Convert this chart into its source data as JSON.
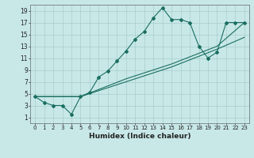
{
  "xlabel": "Humidex (Indice chaleur)",
  "bg_color": "#c8e8e8",
  "grid_color": "#a8cccc",
  "line_color": "#1a6e60",
  "xlim": [
    -0.5,
    23.5
  ],
  "ylim": [
    0.0,
    20.0
  ],
  "xticks": [
    0,
    1,
    2,
    3,
    4,
    5,
    6,
    7,
    8,
    9,
    10,
    11,
    12,
    13,
    14,
    15,
    16,
    17,
    18,
    19,
    20,
    21,
    22,
    23
  ],
  "yticks": [
    1,
    3,
    5,
    7,
    9,
    11,
    13,
    15,
    17,
    19
  ],
  "line1": {
    "x": [
      0,
      1,
      2,
      3,
      4,
      5,
      6,
      7,
      8,
      9,
      10,
      11,
      12,
      13,
      14,
      15,
      16,
      17,
      18,
      19,
      20,
      21,
      22,
      23
    ],
    "y": [
      4.5,
      3.5,
      3.0,
      3.0,
      1.5,
      4.5,
      5.2,
      7.8,
      8.8,
      10.5,
      12.2,
      14.2,
      15.5,
      17.8,
      19.5,
      17.5,
      17.5,
      17.0,
      13.0,
      11.0,
      12.0,
      17.0,
      17.0,
      17.0
    ]
  },
  "line2": {
    "x": [
      0,
      5,
      10,
      15,
      20,
      23
    ],
    "y": [
      4.5,
      4.5,
      7.0,
      9.5,
      12.5,
      14.5
    ]
  },
  "line3": {
    "x": [
      0,
      5,
      10,
      15,
      20,
      23
    ],
    "y": [
      4.5,
      4.5,
      7.5,
      10.0,
      13.0,
      17.0
    ]
  },
  "marker_color": "#1a6e60",
  "xlabel_fontsize": 6.5,
  "tick_fontsize_x": 5.0,
  "tick_fontsize_y": 5.5
}
